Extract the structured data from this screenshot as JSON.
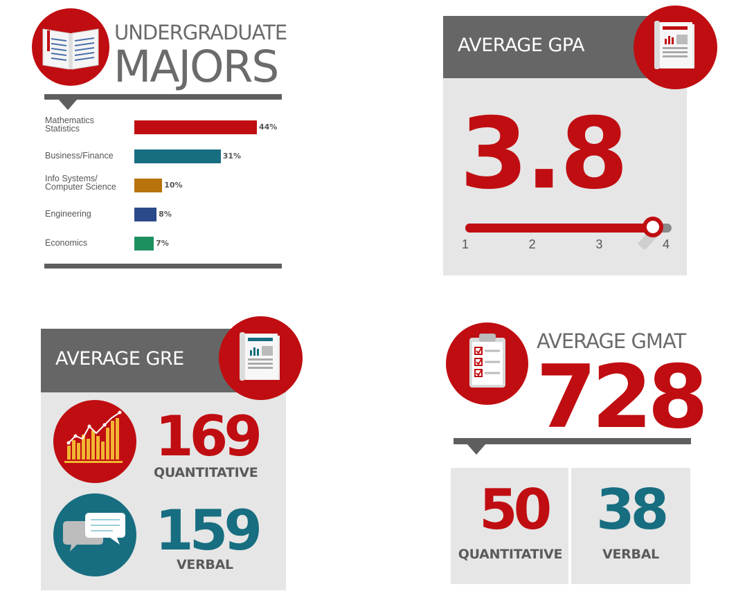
{
  "majors": {
    "title_line1": "UNDERGRADUATE",
    "title_line2": "MAJORS",
    "icon": "open-book-icon"
  },
  "gpa": {
    "title": "AVERAGE GPA",
    "value": "3.8",
    "value_num": 3.8,
    "scale_min": 1,
    "scale_max": 4,
    "ticks": [
      "1",
      "2",
      "3",
      "4"
    ],
    "icon": "newspaper-icon"
  },
  "gre": {
    "title": "AVERAGE GRE",
    "quant_value": "169",
    "quant_label": "QUANTITATIVE",
    "verbal_value": "159",
    "verbal_label": "VERBAL",
    "icon": "newspaper-icon",
    "quant_icon": "bar-chart-icon",
    "verbal_icon": "speech-bubbles-icon"
  },
  "gmat": {
    "title": "AVERAGE GMAT",
    "value": "728",
    "quant_value": "50",
    "quant_label": "QUANTITATIVE",
    "verbal_value": "38",
    "verbal_label": "VERBAL",
    "icon": "clipboard-checklist-icon"
  },
  "colors": {
    "red": "#c00d11",
    "teal": "#176e80",
    "gray": "#666666",
    "panel": "#e6e6e6"
  },
  "chart_data": {
    "type": "bar",
    "orientation": "horizontal",
    "title": "UNDERGRADUATE MAJORS",
    "categories": [
      "Mathematics Statistics",
      "Business/Finance",
      "Info Systems/ Computer Science",
      "Engineering",
      "Economics"
    ],
    "label_lines": [
      [
        "Mathematics",
        "Statistics"
      ],
      [
        "Business/Finance"
      ],
      [
        "Info Systems/",
        "Computer Science"
      ],
      [
        "Engineering"
      ],
      [
        "Economics"
      ]
    ],
    "values": [
      44,
      31,
      10,
      8,
      7
    ],
    "value_labels": [
      "44%",
      "31%",
      "10%",
      "8%",
      "7%"
    ],
    "bar_colors": [
      "#c00d11",
      "#176e80",
      "#b8730c",
      "#2a4a8a",
      "#1e9060"
    ],
    "unit": "%",
    "xlabel": "",
    "ylabel": ""
  }
}
